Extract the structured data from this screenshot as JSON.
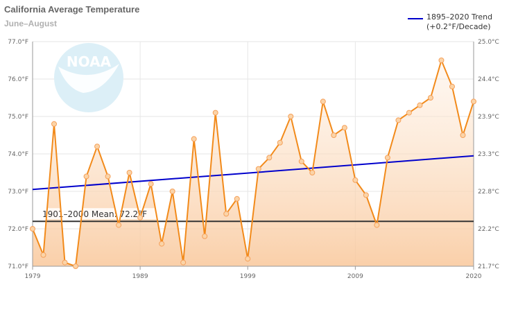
{
  "chart_data": {
    "type": "line",
    "title": "California Average Temperature",
    "subtitle": "June–August",
    "x": [
      1979,
      1980,
      1981,
      1982,
      1983,
      1984,
      1985,
      1986,
      1987,
      1988,
      1989,
      1990,
      1991,
      1992,
      1993,
      1994,
      1995,
      1996,
      1997,
      1998,
      1999,
      2000,
      2001,
      2002,
      2003,
      2004,
      2005,
      2006,
      2007,
      2008,
      2009,
      2010,
      2011,
      2012,
      2013,
      2014,
      2015,
      2016,
      2017,
      2018,
      2019,
      2020
    ],
    "series": [
      {
        "name": "",
        "color": "#f28a1a",
        "values": [
          72.0,
          71.3,
          74.8,
          71.1,
          71.0,
          73.4,
          74.2,
          73.4,
          72.1,
          73.5,
          72.3,
          73.2,
          71.6,
          73.0,
          71.1,
          74.4,
          71.8,
          75.1,
          72.4,
          72.8,
          71.2,
          73.6,
          73.9,
          74.3,
          75.0,
          73.8,
          73.5,
          75.4,
          74.5,
          74.7,
          73.3,
          72.9,
          72.1,
          73.9,
          74.9,
          75.1,
          75.3,
          75.5,
          76.5,
          75.8,
          74.5,
          75.4
        ]
      },
      {
        "name": "1895–2020 Trend",
        "color": "#0000cc",
        "values_at_ends": [
          73.05,
          73.95
        ]
      }
    ],
    "trend_legend_line2": "(+0.2°F/Decade)",
    "mean_line": {
      "label": "1901–2000 Mean: 72.2°F",
      "value": 72.2,
      "color": "#333333"
    },
    "xlim": [
      1979,
      2020
    ],
    "ylim": [
      71.0,
      77.0
    ],
    "x_ticks": [
      "1979",
      "1989",
      "1999",
      "2009",
      "2020"
    ],
    "y_ticks_left": [
      "71.0°F",
      "72.0°F",
      "73.0°F",
      "74.0°F",
      "75.0°F",
      "76.0°F",
      "77.0°F"
    ],
    "y_ticks_right": [
      "21.7°C",
      "22.2°C",
      "22.8°C",
      "23.3°C",
      "23.9°C",
      "24.4°C",
      "25.0°C"
    ],
    "grid": true,
    "legend_position": "top-right",
    "logo": "NOAA"
  }
}
